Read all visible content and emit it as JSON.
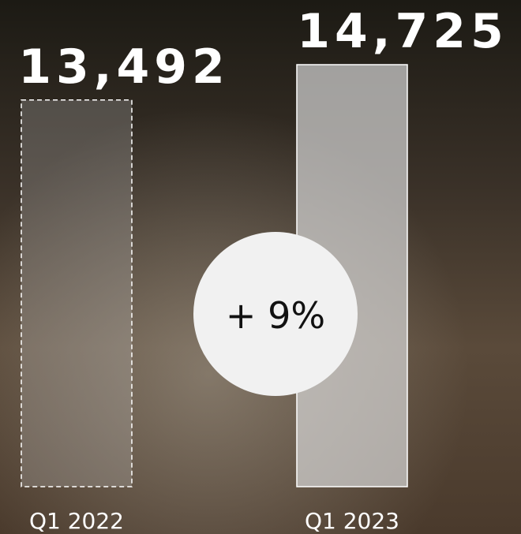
{
  "chart_data": {
    "type": "bar",
    "categories": [
      "Q1 2022",
      "Q1 2023"
    ],
    "values": [
      13492,
      14725
    ],
    "value_labels": [
      "13,492",
      "14,725"
    ],
    "annotation": "+ 9%"
  }
}
